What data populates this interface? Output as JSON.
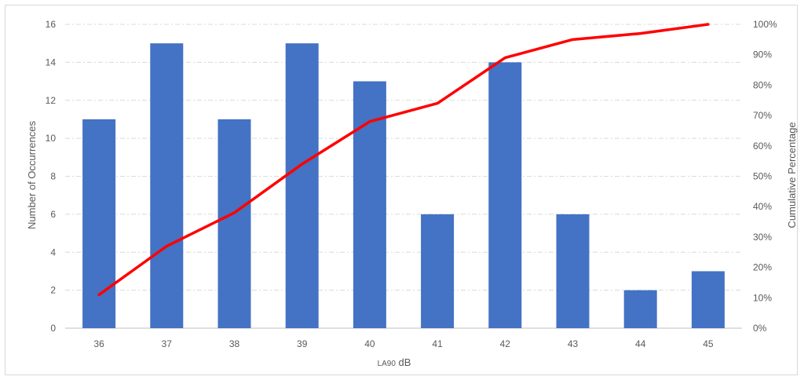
{
  "chart_data": {
    "type": "bar",
    "categories": [
      "36",
      "37",
      "38",
      "39",
      "40",
      "41",
      "42",
      "43",
      "44",
      "45"
    ],
    "series": [
      {
        "values": [
          11,
          15,
          11,
          15,
          13,
          6,
          14,
          6,
          2,
          3
        ],
        "color": "#4472C4",
        "axis": "left",
        "kind": "bar"
      },
      {
        "values": [
          0.11,
          0.27,
          0.38,
          0.54,
          0.68,
          0.74,
          0.89,
          0.95,
          0.97,
          1.0
        ],
        "color": "#FF0000",
        "axis": "right",
        "kind": "line"
      }
    ],
    "ylim": [
      0,
      16
    ],
    "y_ticks": [
      "0",
      "2",
      "4",
      "6",
      "8",
      "10",
      "12",
      "14",
      "16"
    ],
    "y2lim": [
      0,
      1
    ],
    "y2_ticks": [
      "0%",
      "10%",
      "20%",
      "30%",
      "40%",
      "50%",
      "60%",
      "70%",
      "80%",
      "90%",
      "100%"
    ],
    "xlabel_main": "LA90",
    "xlabel_unit": " dB",
    "ylabel": "Number of Occurrences",
    "y2label": "Cumulative Percentage",
    "grid": "horizontal dashed"
  }
}
